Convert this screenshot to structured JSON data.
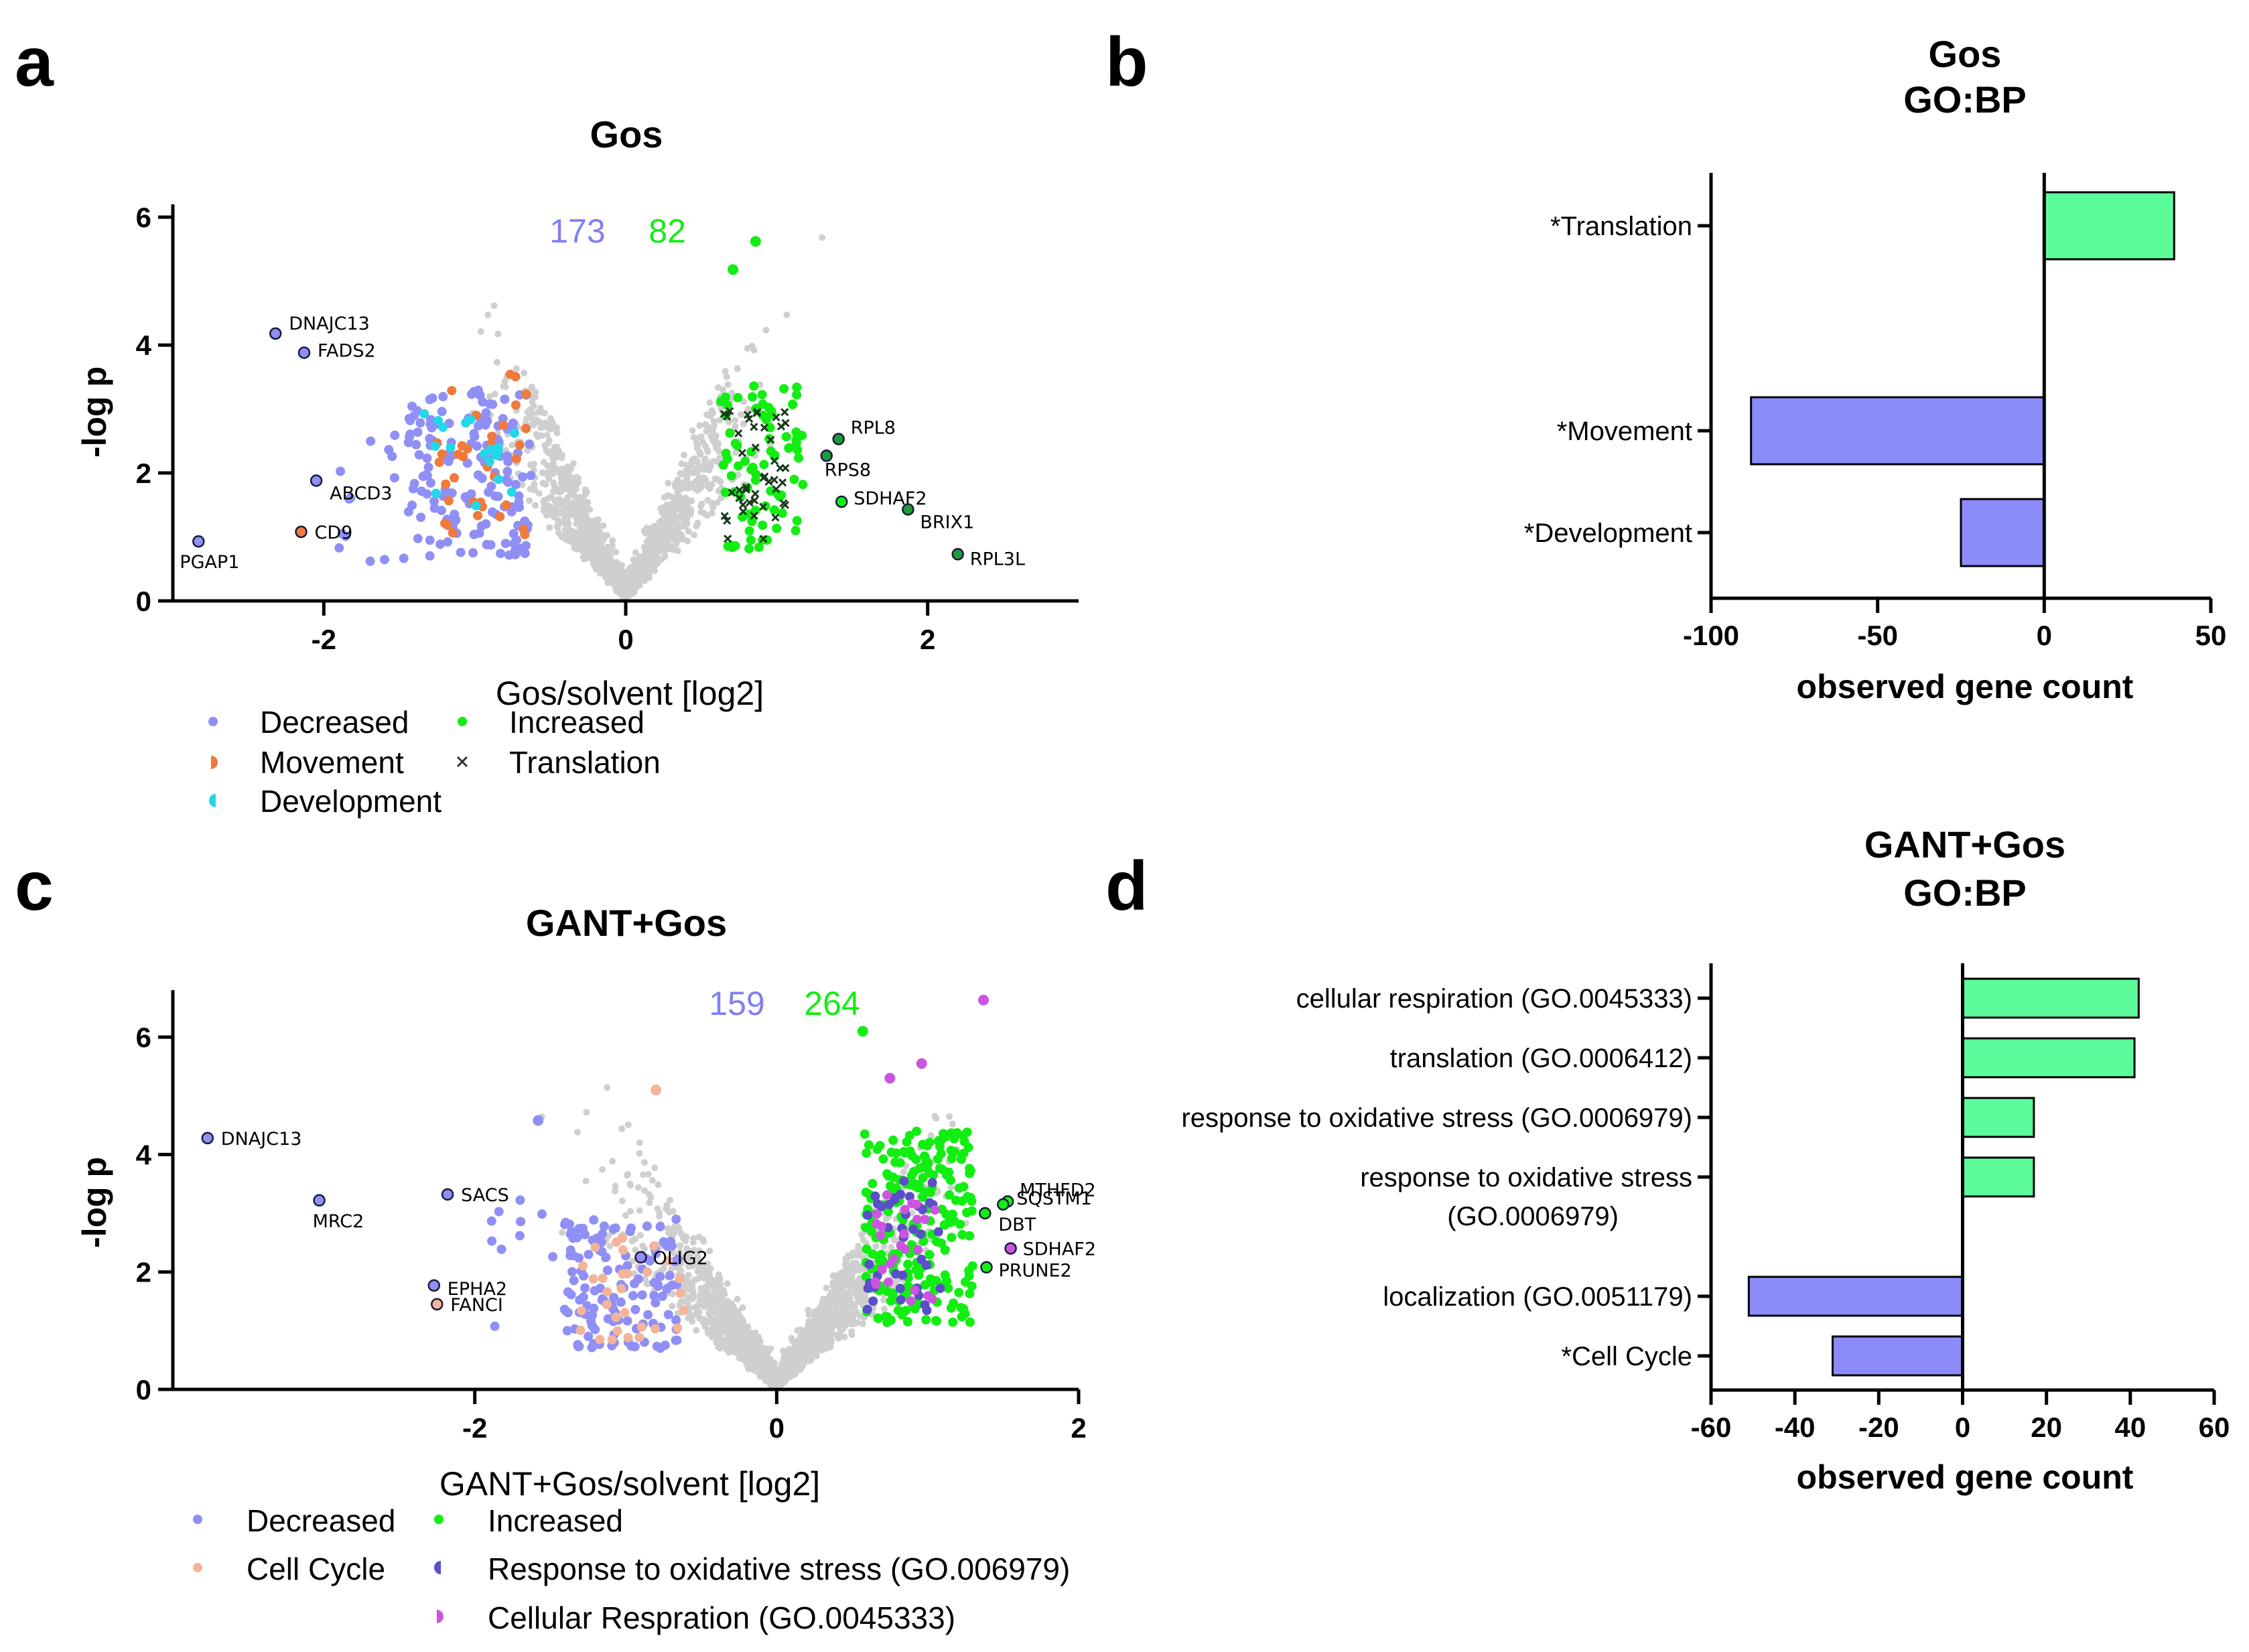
{
  "panels": {
    "a": "a",
    "b": "b",
    "c": "c",
    "d": "d"
  },
  "colors": {
    "background_dots": "#cfcfcf",
    "decreased": "#8f8ff5",
    "increased": "#12ee12",
    "movement": "#f07a3c",
    "development": "#22d8e8",
    "translation_marker": "#1a3a1a",
    "cell_cycle": "#f3b49a",
    "oxidative": "#5a4fc8",
    "respiration": "#cc55e0",
    "bar_up": "#5cfc9b",
    "bar_down": "#8b8bfa"
  },
  "chart_data": [
    {
      "id": "a",
      "type": "scatter",
      "title": "Gos",
      "xlabel": "Gos/solvent [log2]",
      "ylabel": "-log p",
      "xlim": [
        -3.0,
        3.0
      ],
      "ylim": [
        0,
        6.2
      ],
      "xticks": [
        -2,
        0,
        2
      ],
      "yticks": [
        0,
        2,
        4,
        6
      ],
      "xtick_labels": [
        "-2",
        "0",
        "2"
      ],
      "ytick_labels": [
        "0",
        "2",
        "4",
        "6"
      ],
      "count_decreased": "173",
      "count_increased": "82",
      "legend": {
        "decreased": "Decreased",
        "increased": "Increased",
        "movement": "Movement",
        "translation": "Translation",
        "development": "Development"
      },
      "labeled_points": [
        {
          "gene": "DNAJC13",
          "x": -2.32,
          "y": 4.18,
          "group": "decreased"
        },
        {
          "gene": "FADS2",
          "x": -2.13,
          "y": 3.88,
          "group": "decreased"
        },
        {
          "gene": "ABCD3",
          "x": -2.05,
          "y": 1.88,
          "group": "decreased"
        },
        {
          "gene": "CD9",
          "x": -2.15,
          "y": 1.08,
          "group": "movement"
        },
        {
          "gene": "PGAP1",
          "x": -2.83,
          "y": 0.93,
          "group": "decreased"
        },
        {
          "gene": "RPL8",
          "x": 1.41,
          "y": 2.53,
          "group": "translation"
        },
        {
          "gene": "RPS8",
          "x": 1.33,
          "y": 2.27,
          "group": "translation"
        },
        {
          "gene": "SDHAF2",
          "x": 1.43,
          "y": 1.55,
          "group": "increased"
        },
        {
          "gene": "BRIX1",
          "x": 1.87,
          "y": 1.43,
          "group": "translation"
        },
        {
          "gene": "RPL3L",
          "x": 2.2,
          "y": 0.73,
          "group": "translation"
        }
      ],
      "highlighted_points": [
        {
          "x": 0.71,
          "y": 5.18,
          "group": "increased"
        },
        {
          "x": 0.86,
          "y": 5.62,
          "group": "increased"
        }
      ]
    },
    {
      "id": "b",
      "type": "bar",
      "orientation": "horizontal",
      "title": "Gos",
      "subtitle": "GO:BP",
      "xlabel": "observed gene count",
      "xlim": [
        -100,
        50
      ],
      "xticks": [
        -100,
        -50,
        0,
        50
      ],
      "xtick_labels": [
        "-100",
        "-50",
        "0",
        "50"
      ],
      "categories": [
        "*Translation",
        "*Movement",
        "*Development"
      ],
      "values": [
        39,
        -88,
        -25
      ]
    },
    {
      "id": "c",
      "type": "scatter",
      "title": "GANT+Gos",
      "xlabel": "GANT+Gos/solvent [log2]",
      "ylabel": "-log p",
      "xlim": [
        -4.0,
        2.0
      ],
      "ylim": [
        0,
        6.8
      ],
      "xticks": [
        -2,
        0,
        2
      ],
      "yticks": [
        0,
        2,
        4,
        6
      ],
      "xtick_labels": [
        "-2",
        "0",
        "2"
      ],
      "ytick_labels": [
        "0",
        "2",
        "4",
        "6"
      ],
      "count_decreased": "159",
      "count_increased": "264",
      "legend": {
        "decreased": "Decreased",
        "increased": "Increased",
        "cell_cycle": "Cell Cycle",
        "oxidative": "Response to oxidative stress (GO.006979)",
        "respiration": "Cellular Respration (GO.0045333)"
      },
      "labeled_points": [
        {
          "gene": "DNAJC13",
          "x": -3.77,
          "y": 4.28,
          "group": "decreased"
        },
        {
          "gene": "MRC2",
          "x": -3.03,
          "y": 3.22,
          "group": "decreased"
        },
        {
          "gene": "SACS",
          "x": -2.18,
          "y": 3.32,
          "group": "decreased"
        },
        {
          "gene": "OLIG2",
          "x": -0.9,
          "y": 2.25,
          "group": "decreased"
        },
        {
          "gene": "EPHA2",
          "x": -2.27,
          "y": 1.77,
          "group": "decreased"
        },
        {
          "gene": "FANCI",
          "x": -2.25,
          "y": 1.45,
          "group": "cell_cycle"
        },
        {
          "gene": "MTHFD2",
          "x": 1.53,
          "y": 3.2,
          "group": "increased"
        },
        {
          "gene": "SQSTM1",
          "x": 1.5,
          "y": 3.15,
          "group": "increased"
        },
        {
          "gene": "DBT",
          "x": 1.38,
          "y": 3.0,
          "group": "increased"
        },
        {
          "gene": "SDHAF2",
          "x": 1.55,
          "y": 2.4,
          "group": "respiration"
        },
        {
          "gene": "PRUNE2",
          "x": 1.39,
          "y": 2.08,
          "group": "increased"
        }
      ],
      "highlighted_points": [
        {
          "x": 1.37,
          "y": 6.63,
          "group": "respiration"
        },
        {
          "x": 0.96,
          "y": 5.55,
          "group": "respiration"
        },
        {
          "x": 0.75,
          "y": 5.3,
          "group": "respiration"
        },
        {
          "x": 0.57,
          "y": 6.1,
          "group": "increased"
        },
        {
          "x": -0.8,
          "y": 5.1,
          "group": "cell_cycle"
        },
        {
          "x": -1.58,
          "y": 4.58,
          "group": "decreased"
        }
      ]
    },
    {
      "id": "d",
      "type": "bar",
      "orientation": "horizontal",
      "title": "GANT+Gos",
      "subtitle": "GO:BP",
      "xlabel": "observed gene count",
      "xlim": [
        -60,
        60
      ],
      "xticks": [
        -60,
        -40,
        -20,
        0,
        20,
        40,
        60
      ],
      "xtick_labels": [
        "-60",
        "-40",
        "-20",
        "0",
        "20",
        "40",
        "60"
      ],
      "categories": [
        "cellular respiration (GO.0045333)",
        "translation (GO.0006412)",
        "response to oxidative stress (GO.0006979)",
        "response to oxidative stress (GO.0006979)",
        "localization (GO.0051179)",
        "*Cell Cycle"
      ],
      "category_lines": [
        [
          "cellular respiration (GO.0045333)"
        ],
        [
          "translation (GO.0006412)"
        ],
        [
          "response to oxidative stress (GO.0006979)"
        ],
        [
          "response to oxidative stress",
          "(GO.0006979)"
        ],
        [
          "localization (GO.0051179)"
        ],
        [
          "*Cell Cycle"
        ]
      ],
      "values": [
        42,
        41,
        17,
        17,
        -51,
        -31
      ]
    }
  ]
}
